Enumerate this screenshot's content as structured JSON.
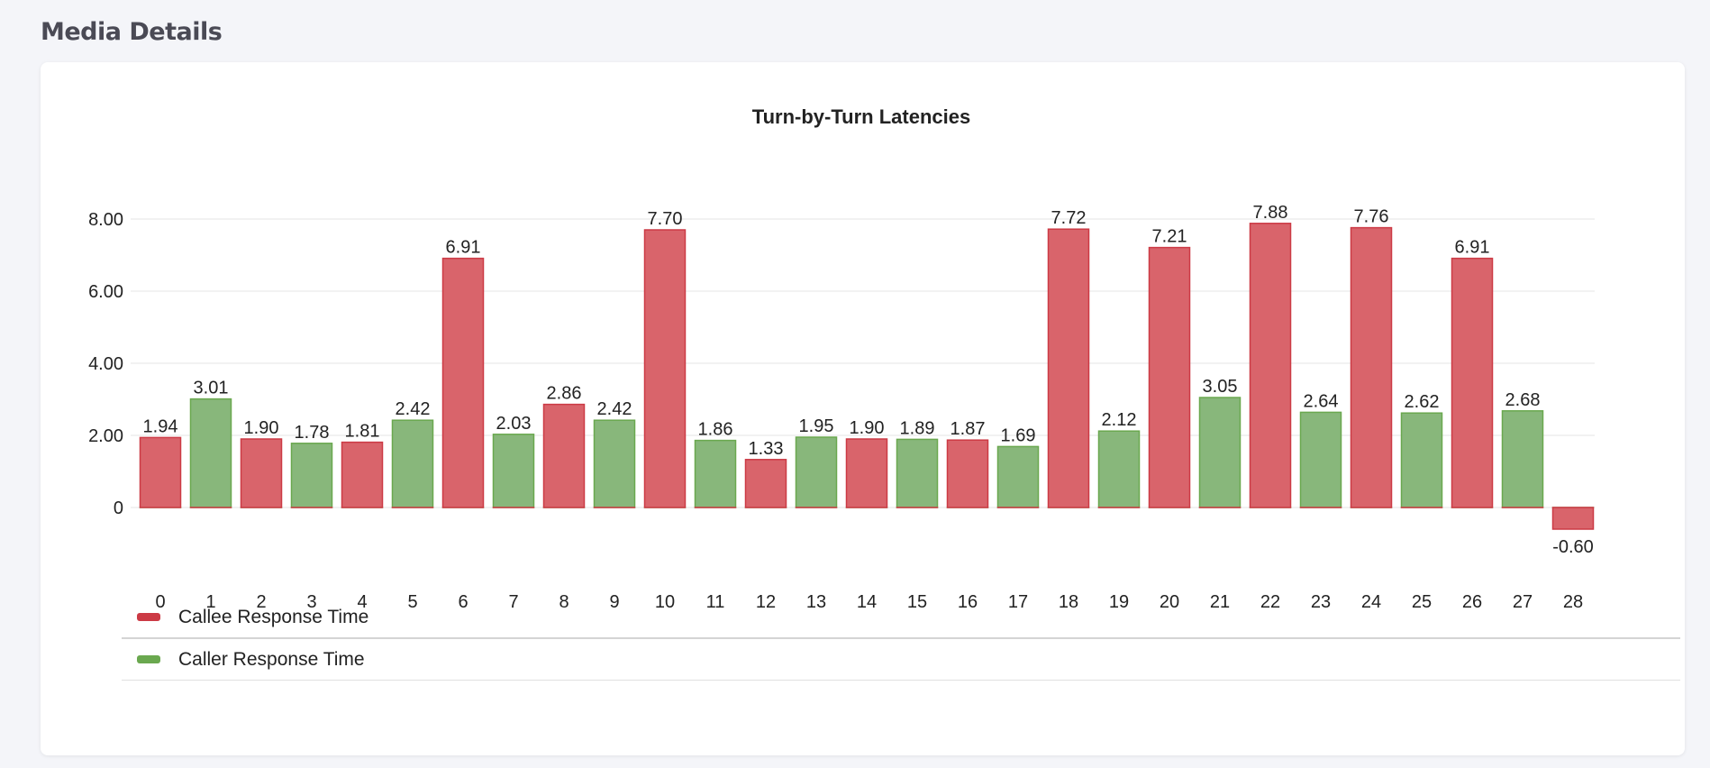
{
  "page": {
    "section_title": "Media Details"
  },
  "chart_data": {
    "type": "bar",
    "title": "Turn-by-Turn Latencies",
    "xlabel": "",
    "ylabel": "",
    "categories": [
      "0",
      "1",
      "2",
      "3",
      "4",
      "5",
      "6",
      "7",
      "8",
      "9",
      "10",
      "11",
      "12",
      "13",
      "14",
      "15",
      "16",
      "17",
      "18",
      "19",
      "20",
      "21",
      "22",
      "23",
      "24",
      "25",
      "26",
      "27",
      "28"
    ],
    "ylim": [
      -1,
      8
    ],
    "yticks": [
      "0",
      "2.00",
      "4.00",
      "6.00",
      "8.00"
    ],
    "grid": true,
    "legend_position": "bottom",
    "series": [
      {
        "name": "Callee Response Time",
        "color": "#d9646b",
        "border": "#cc3a45",
        "values": [
          1.94,
          0,
          1.9,
          0,
          1.81,
          0,
          6.91,
          0,
          2.86,
          0,
          7.7,
          0,
          1.33,
          0,
          1.9,
          0,
          1.87,
          0,
          7.72,
          0,
          7.21,
          0,
          7.88,
          0,
          7.76,
          0,
          6.91,
          0,
          -0.6
        ]
      },
      {
        "name": "Caller Response Time",
        "color": "#88b77b",
        "border": "#6aa84f",
        "values": [
          0,
          3.01,
          0,
          1.78,
          0,
          2.42,
          0,
          2.03,
          0,
          2.42,
          0,
          1.86,
          0,
          1.95,
          0,
          1.89,
          0,
          1.69,
          0,
          2.12,
          0,
          3.05,
          0,
          2.64,
          0,
          2.62,
          0,
          2.68,
          0
        ]
      }
    ],
    "data_labels": [
      "1.94",
      "3.01",
      "1.90",
      "1.78",
      "1.81",
      "2.42",
      "6.91",
      "2.03",
      "2.86",
      "2.42",
      "7.70",
      "1.86",
      "1.33",
      "1.95",
      "1.90",
      "1.89",
      "1.87",
      "1.69",
      "7.72",
      "2.12",
      "7.21",
      "3.05",
      "7.88",
      "2.64",
      "7.76",
      "2.62",
      "6.91",
      "2.68",
      "-0.60"
    ]
  }
}
